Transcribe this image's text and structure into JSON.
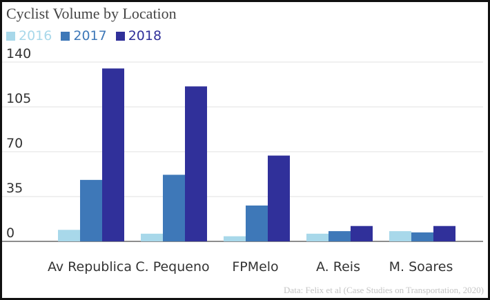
{
  "chart_data": {
    "type": "bar",
    "title": "Cyclist Volume by Location",
    "xlabel": "",
    "ylabel": "",
    "categories": [
      "Av Republica",
      "C. Pequeno",
      "FPMelo",
      "A. Reis",
      "M. Soares"
    ],
    "series": [
      {
        "name": "2016",
        "color": "#a8d8ea",
        "values": [
          9,
          6,
          4,
          6,
          8
        ]
      },
      {
        "name": "2017",
        "color": "#3e78b8",
        "values": [
          48,
          52,
          28,
          8,
          7
        ]
      },
      {
        "name": "2018",
        "color": "#30309a",
        "values": [
          135,
          121,
          67,
          12,
          12
        ]
      }
    ],
    "ylim": [
      0,
      140
    ],
    "yticks": [
      "0",
      "35",
      "70",
      "105",
      "140"
    ],
    "grid": true,
    "legend_position": "top-left",
    "source": "Data: Felix et al (Case Studies on Transportation, 2020)"
  }
}
